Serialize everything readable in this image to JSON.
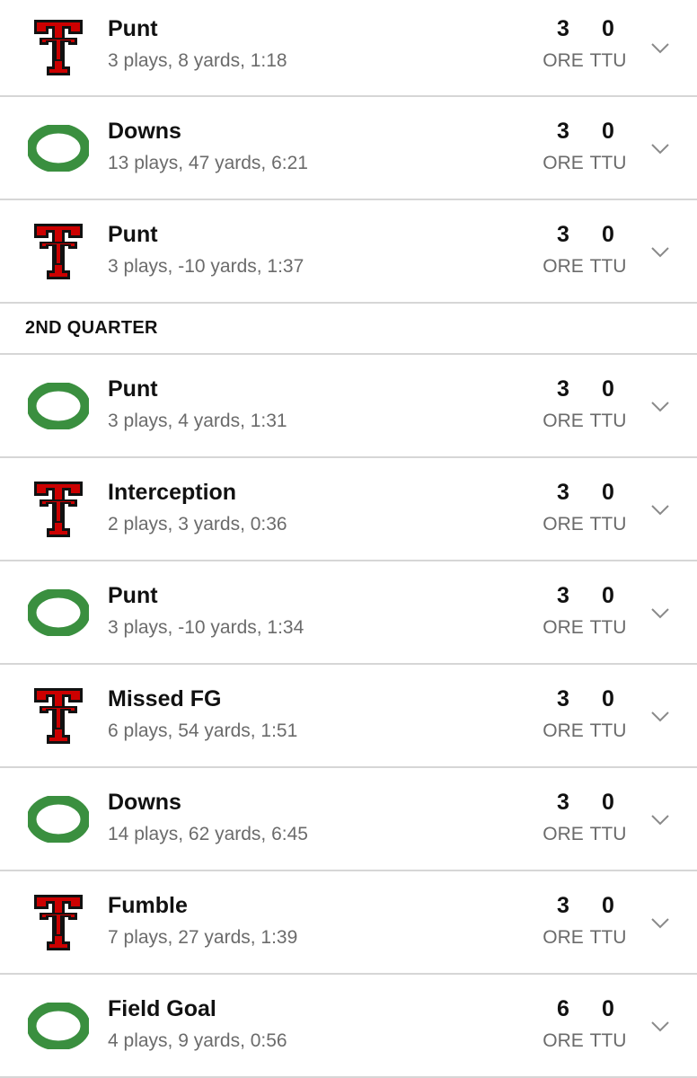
{
  "teams": {
    "away": {
      "abbr": "ORE",
      "logo": "oregon-o-logo",
      "color": "#3a8f3f"
    },
    "home": {
      "abbr": "TTU",
      "logo": "texas-tech-double-t-logo",
      "color": "#cc0000"
    }
  },
  "quarter_header": "2ND QUARTER",
  "drives_q1": [
    {
      "team": "TTU",
      "result": "Punt",
      "summary": "3 plays, 8 yards, 1:18",
      "ore_score": "3",
      "ttu_score": "0"
    },
    {
      "team": "ORE",
      "result": "Downs",
      "summary": "13 plays, 47 yards, 6:21",
      "ore_score": "3",
      "ttu_score": "0"
    },
    {
      "team": "TTU",
      "result": "Punt",
      "summary": "3 plays, -10 yards, 1:37",
      "ore_score": "3",
      "ttu_score": "0"
    }
  ],
  "drives_q2": [
    {
      "team": "ORE",
      "result": "Punt",
      "summary": "3 plays, 4 yards, 1:31",
      "ore_score": "3",
      "ttu_score": "0"
    },
    {
      "team": "TTU",
      "result": "Interception",
      "summary": "2 plays, 3 yards, 0:36",
      "ore_score": "3",
      "ttu_score": "0"
    },
    {
      "team": "ORE",
      "result": "Punt",
      "summary": "3 plays, -10 yards, 1:34",
      "ore_score": "3",
      "ttu_score": "0"
    },
    {
      "team": "TTU",
      "result": "Missed FG",
      "summary": "6 plays, 54 yards, 1:51",
      "ore_score": "3",
      "ttu_score": "0"
    },
    {
      "team": "ORE",
      "result": "Downs",
      "summary": "14 plays, 62 yards, 6:45",
      "ore_score": "3",
      "ttu_score": "0"
    },
    {
      "team": "TTU",
      "result": "Fumble",
      "summary": "7 plays, 27 yards, 1:39",
      "ore_score": "3",
      "ttu_score": "0"
    },
    {
      "team": "ORE",
      "result": "Field Goal",
      "summary": "4 plays, 9 yards, 0:56",
      "ore_score": "6",
      "ttu_score": "0"
    }
  ],
  "icons": {
    "expand": "chevron-down-icon"
  }
}
